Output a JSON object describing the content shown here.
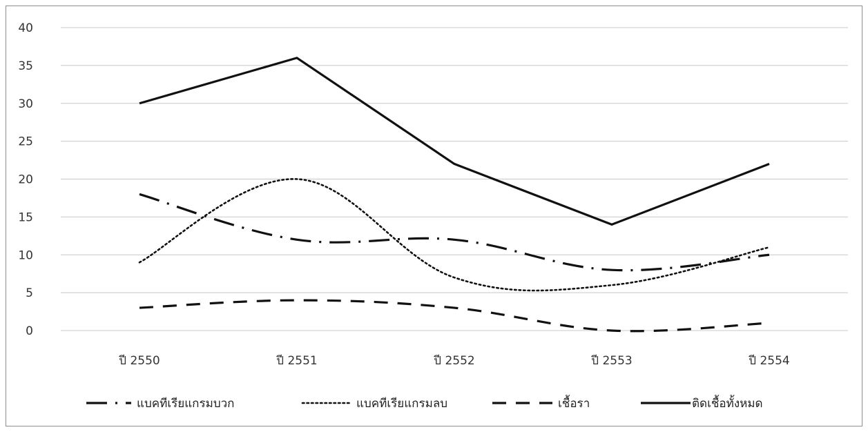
{
  "chart_data": {
    "type": "line",
    "title": "",
    "xlabel": "",
    "ylabel": "",
    "categories": [
      "ปี 2550",
      "ปี 2551",
      "ปี 2552",
      "ปี 2553",
      "ปี 2554"
    ],
    "ylim": [
      0,
      40
    ],
    "yticks": [
      0,
      5,
      10,
      15,
      20,
      25,
      30,
      35,
      40
    ],
    "grid": true,
    "legend_position": "bottom",
    "series": [
      {
        "name": "แบคทีเรียแกรมบวก",
        "values": [
          18,
          12,
          12,
          8,
          10
        ],
        "style": "dash-dot",
        "color": "#111111"
      },
      {
        "name": "แบคทีเรียแกรมลบ",
        "values": [
          9,
          20,
          7,
          6,
          11
        ],
        "style": "dotted",
        "color": "#111111"
      },
      {
        "name": "เชื้อรา",
        "values": [
          3,
          4,
          3,
          0,
          1
        ],
        "style": "dashed",
        "color": "#111111"
      },
      {
        "name": "ติดเชื้อทั้งหมด",
        "values": [
          30,
          36,
          22,
          14,
          22
        ],
        "style": "solid",
        "color": "#111111"
      }
    ]
  }
}
